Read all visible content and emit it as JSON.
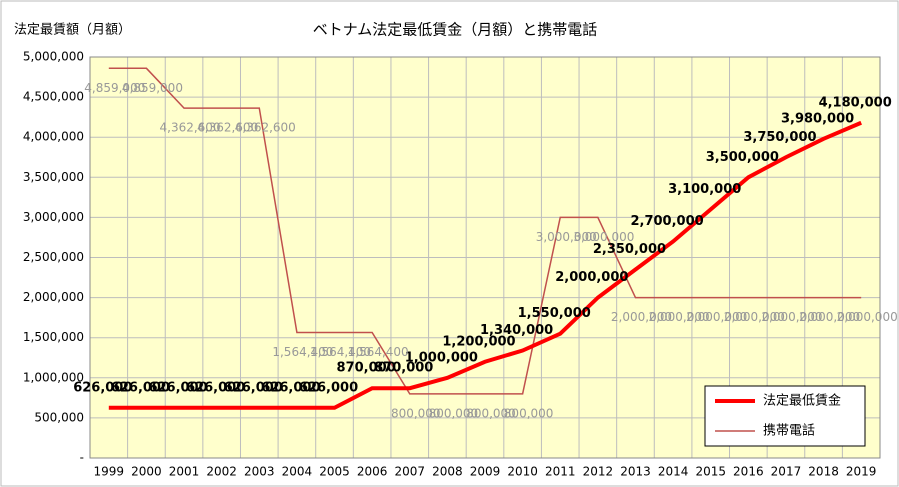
{
  "chart_data": {
    "type": "line",
    "title": "ベトナム法定最低賃金（月額）と携帯電話",
    "y_label": "法定最賃額（月額）",
    "categories": [
      "1999",
      "2000",
      "2001",
      "2002",
      "2003",
      "2004",
      "2005",
      "2006",
      "2007",
      "2008",
      "2009",
      "2010",
      "2011",
      "2012",
      "2013",
      "2014",
      "2015",
      "2016",
      "2017",
      "2018",
      "2019"
    ],
    "series": [
      {
        "name": "法定最低賃金",
        "color": "#ff0000",
        "values": [
          626000,
          626000,
          626000,
          626000,
          626000,
          626000,
          626000,
          870000,
          870000,
          1000000,
          1200000,
          1340000,
          1550000,
          2000000,
          2350000,
          2700000,
          3100000,
          3500000,
          3750000,
          3980000,
          4180000
        ],
        "value_labels": [
          "626,000",
          "626,000",
          "626,000",
          "626,000",
          "626,000",
          "626,000",
          "626,000",
          "870,000",
          "870,000",
          "1,000,000",
          "1,200,000",
          "1,340,000",
          "1,550,000",
          "2,000,000",
          "2,350,000",
          "2,700,000",
          "3,100,000",
          "3,500,000",
          "3,750,000",
          "3,980,000",
          "4,180,000"
        ]
      },
      {
        "name": "携帯電話",
        "color": "#c0504d",
        "values": [
          4859000,
          4859000,
          4362600,
          4362600,
          4362600,
          1564400,
          1564400,
          1564400,
          800000,
          800000,
          800000,
          800000,
          3000000,
          3000000,
          2000000,
          2000000,
          2000000,
          2000000,
          2000000,
          2000000,
          2000000
        ],
        "value_labels": [
          "4,859,000",
          "4,859,000",
          "4,362,600",
          "4,362,600",
          "4,362,600",
          "1,564,400",
          "1,564,400",
          "1,564,400",
          "800,000",
          "800,000",
          "800,000",
          "800,000",
          "3,000,000",
          "3,000,000",
          "2,000,000",
          "2,000,000",
          "2,000,000",
          "2,000,000",
          "2,000,000",
          "2,000,000",
          "2,000,000"
        ]
      }
    ],
    "ylim": [
      0,
      5000000
    ],
    "yticks": [
      {
        "value": 0,
        "label": "-"
      },
      {
        "value": 500000,
        "label": "500,000"
      },
      {
        "value": 1000000,
        "label": "1,000,000"
      },
      {
        "value": 1500000,
        "label": "1,500,000"
      },
      {
        "value": 2000000,
        "label": "2,000,000"
      },
      {
        "value": 2500000,
        "label": "2,500,000"
      },
      {
        "value": 3000000,
        "label": "3,000,000"
      },
      {
        "value": 3500000,
        "label": "3,500,000"
      },
      {
        "value": 4000000,
        "label": "4,000,000"
      },
      {
        "value": 4500000,
        "label": "4,500,000"
      },
      {
        "value": 5000000,
        "label": "5,000,000"
      }
    ],
    "grid": true,
    "legend": "bottom-right"
  }
}
